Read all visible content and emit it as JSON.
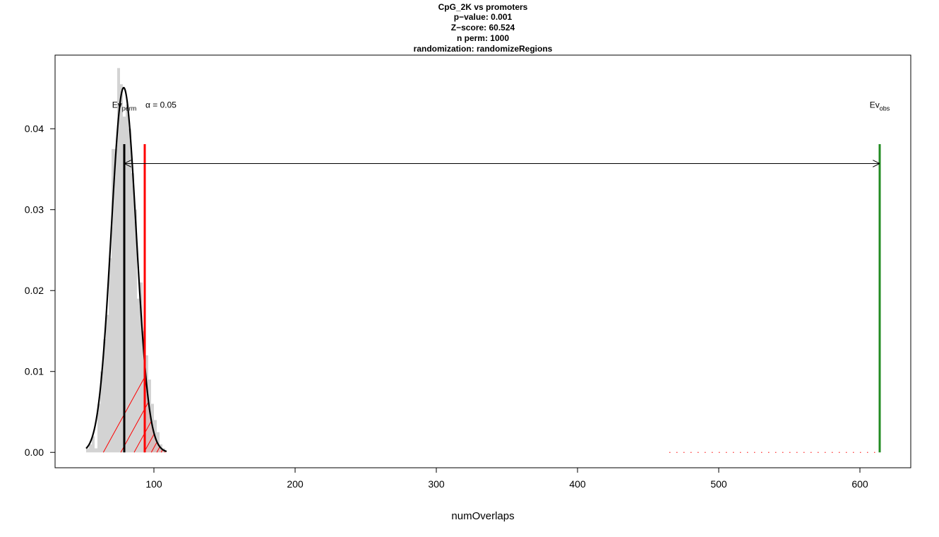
{
  "chart_data": {
    "type": "histogram",
    "title_lines": [
      "CpG_2K vs promoters",
      "p−value:  0.001",
      "Z−score:  60.524",
      "n perm:  1000",
      "randomization:  randomizeRegions"
    ],
    "xlabel": "numOverlaps",
    "ylabel": "",
    "xlim": [
      30,
      636
    ],
    "ylim": [
      -0.0019,
      0.0491
    ],
    "xticks": [
      100,
      200,
      300,
      400,
      500,
      600
    ],
    "yticks": [
      0.0,
      0.01,
      0.02,
      0.03,
      0.04
    ],
    "ytick_labels": [
      "0.00",
      "0.01",
      "0.02",
      "0.03",
      "0.04"
    ],
    "histogram": {
      "bin_width": 2,
      "bins": [
        {
          "x0": 52,
          "density": 0.0005
        },
        {
          "x0": 54,
          "density": 0.001
        },
        {
          "x0": 56,
          "density": 0.002
        },
        {
          "x0": 58,
          "density": 0.0005
        },
        {
          "x0": 60,
          "density": 0.006
        },
        {
          "x0": 62,
          "density": 0.01
        },
        {
          "x0": 64,
          "density": 0.014
        },
        {
          "x0": 66,
          "density": 0.017
        },
        {
          "x0": 68,
          "density": 0.024
        },
        {
          "x0": 70,
          "density": 0.0375
        },
        {
          "x0": 72,
          "density": 0.0375
        },
        {
          "x0": 74,
          "density": 0.0475
        },
        {
          "x0": 76,
          "density": 0.0455
        },
        {
          "x0": 78,
          "density": 0.0415
        },
        {
          "x0": 80,
          "density": 0.043
        },
        {
          "x0": 82,
          "density": 0.04
        },
        {
          "x0": 84,
          "density": 0.0345
        },
        {
          "x0": 86,
          "density": 0.03
        },
        {
          "x0": 88,
          "density": 0.019
        },
        {
          "x0": 90,
          "density": 0.021
        },
        {
          "x0": 92,
          "density": 0.015
        },
        {
          "x0": 94,
          "density": 0.012
        },
        {
          "x0": 96,
          "density": 0.009
        },
        {
          "x0": 98,
          "density": 0.006
        },
        {
          "x0": 100,
          "density": 0.004
        },
        {
          "x0": 102,
          "density": 0.0025
        },
        {
          "x0": 104,
          "density": 0.001
        },
        {
          "x0": 106,
          "density": 0.0005
        }
      ],
      "color": "#d3d3d3"
    },
    "normal_fit": {
      "mean": 78.6,
      "sd": 8.85,
      "range": [
        52,
        109
      ],
      "color": "#000000"
    },
    "significance_region": {
      "from": 93.2,
      "to": 109,
      "color": "#ff0000"
    },
    "lines": [
      {
        "name": "Ev_perm",
        "x": 79,
        "ymax": 0.0381,
        "color": "#000000"
      },
      {
        "name": "alpha",
        "x": 93.5,
        "ymax": 0.0381,
        "color": "#ff0000"
      },
      {
        "name": "Ev_obs",
        "x": 614,
        "ymax": 0.0381,
        "color": "#228b22"
      }
    ],
    "arrow": {
      "x_from": 79,
      "x_to": 614,
      "y": 0.0357
    },
    "rug": {
      "from": 465,
      "to": 612,
      "step": 5,
      "y": 0.0,
      "color": "#ff0000"
    },
    "annotations": {
      "ev_perm": {
        "main": "Ev",
        "sub": "perm",
        "x": 79,
        "y": 0.0426
      },
      "alpha": {
        "text": "α = 0.05",
        "x": 105,
        "y": 0.0426
      },
      "ev_obs": {
        "main": "Ev",
        "sub": "obs",
        "x": 614,
        "y": 0.0426
      }
    }
  }
}
